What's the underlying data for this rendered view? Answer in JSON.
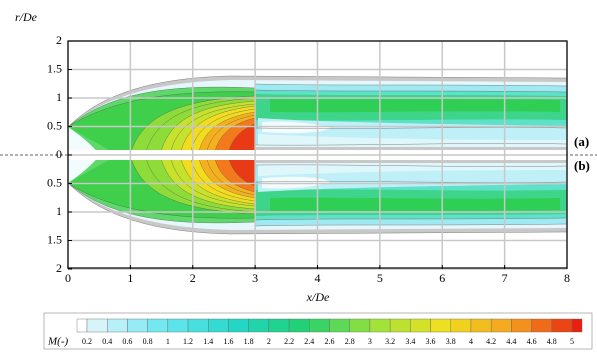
{
  "chart_data": {
    "type": "contour",
    "xlabel": "x/De",
    "ylabel": "r/De",
    "xlim": [
      0,
      8
    ],
    "xticks": [
      0,
      1,
      2,
      3,
      4,
      5,
      6,
      7,
      8
    ],
    "grid": true,
    "panels": [
      {
        "label": "(a)",
        "ylim": [
          0,
          2
        ],
        "yticks": [
          0,
          0.5,
          1,
          1.5,
          2
        ],
        "inverted": false
      },
      {
        "label": "(b)",
        "ylim": [
          0,
          2
        ],
        "yticks": [
          0.5,
          1,
          1.5,
          2
        ],
        "inverted": true
      }
    ],
    "colorbar": {
      "title": "M(-)",
      "ticks": [
        0.2,
        0.4,
        0.6,
        0.8,
        1,
        1.2,
        1.4,
        1.6,
        1.8,
        2,
        2.2,
        2.4,
        2.6,
        2.8,
        3,
        3.2,
        3.4,
        3.6,
        3.8,
        4,
        4.2,
        4.4,
        4.6,
        4.8,
        5
      ]
    }
  }
}
